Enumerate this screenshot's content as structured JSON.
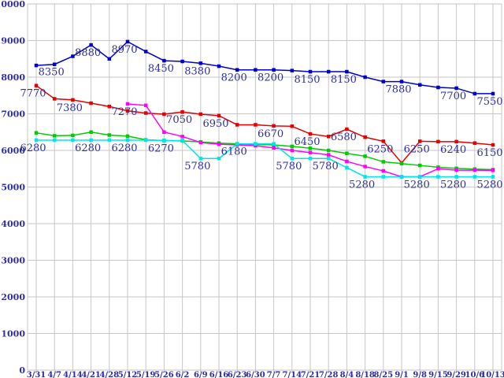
{
  "chart_data": {
    "type": "line",
    "title": "",
    "legend": "none",
    "grid": true,
    "background": "#ffffff",
    "grid_color": "#c6c6c6",
    "label_color": "#2e2e9e",
    "categories": [
      "3/31",
      "4/7",
      "4/14",
      "4/21",
      "4/28",
      "5/12",
      "5/19",
      "5/26",
      "6/2",
      "6/9",
      "6/16",
      "6/23",
      "6/30",
      "7/7",
      "7/14",
      "7/21",
      "7/28",
      "8/4",
      "8/18",
      "8/25",
      "9/1",
      "9/8",
      "9/15",
      "9/29",
      "10/6",
      "10/13"
    ],
    "y_axis": {
      "min": 0,
      "max": 10000,
      "step": 1000,
      "tick_labels": [
        "0",
        "1000",
        "2000",
        "3000",
        "4000",
        "5000",
        "6000",
        "7000",
        "8000",
        "9000",
        "10000"
      ]
    },
    "series": [
      {
        "name": "blue-series",
        "color": "#0000cc",
        "values": [
          8320,
          8350,
          8570,
          8880,
          8500,
          8970,
          8700,
          8450,
          8430,
          8380,
          8300,
          8200,
          8200,
          8200,
          8180,
          8150,
          8150,
          8150,
          8000,
          7880,
          7880,
          7790,
          7720,
          7700,
          7550,
          7550
        ],
        "point_labels": {
          "1": "8350",
          "3": "8880",
          "5": "8970",
          "7": "8450",
          "9": "8380",
          "11": "8200",
          "13": "8200",
          "15": "8150",
          "17": "8150",
          "20": "7880",
          "23": "7700",
          "25": "7550"
        }
      },
      {
        "name": "red-series",
        "color": "#e60000",
        "values": [
          7770,
          7410,
          7380,
          7290,
          7200,
          7080,
          7020,
          6990,
          7050,
          6990,
          6950,
          6700,
          6700,
          6670,
          6660,
          6450,
          6380,
          6580,
          6360,
          6250,
          5660,
          6250,
          6240,
          6240,
          6200,
          6150
        ],
        "point_labels": {
          "0": "7770",
          "2": "7380",
          "8": "7050",
          "10": "6950",
          "13": "6670",
          "15": "6450",
          "17": "6580",
          "19": "6250",
          "21": "6250",
          "23": "6240",
          "25": "6150"
        }
      },
      {
        "name": "green-series",
        "color": "#00cc00",
        "values": [
          6480,
          6400,
          6410,
          6500,
          6420,
          6390,
          6290,
          6270,
          6260,
          6230,
          6200,
          6180,
          6160,
          6150,
          6110,
          6060,
          6000,
          5920,
          5840,
          5690,
          5640,
          5590,
          5540,
          5510,
          5490,
          5475
        ],
        "point_labels": {}
      },
      {
        "name": "magenta-series",
        "color": "#ff00ff",
        "values": [
          null,
          null,
          null,
          null,
          null,
          7270,
          7230,
          6500,
          6380,
          6215,
          6170,
          6150,
          6130,
          6070,
          6000,
          5940,
          5880,
          5700,
          5560,
          5440,
          5280,
          5280,
          5500,
          5460,
          5460,
          5455
        ],
        "point_labels": {
          "5": "7270"
        }
      },
      {
        "name": "cyan-series",
        "color": "#00e6e6",
        "values": [
          6280,
          6280,
          6280,
          6280,
          6280,
          6280,
          6280,
          6270,
          6270,
          5780,
          5780,
          6180,
          6180,
          6180,
          5780,
          5780,
          5780,
          5530,
          5280,
          5280,
          5280,
          5280,
          5280,
          5280,
          5280,
          5280
        ],
        "point_labels": {
          "0": "6280",
          "3": "6280",
          "5": "6280",
          "7": "6270",
          "9": "5780",
          "11": "6180",
          "14": "5780",
          "16": "5780",
          "18": "5280",
          "21": "5280",
          "23": "5280",
          "25": "5280"
        }
      }
    ]
  }
}
